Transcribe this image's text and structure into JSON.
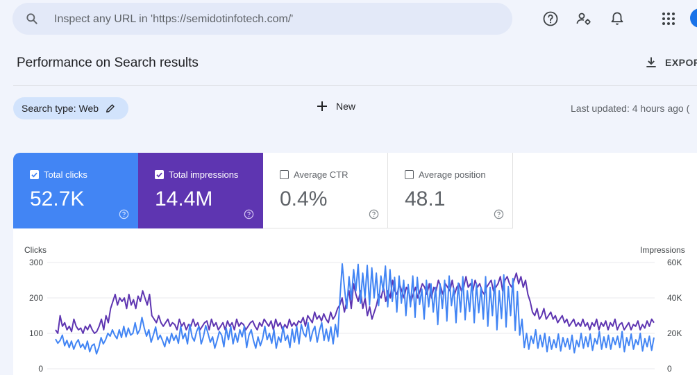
{
  "search": {
    "placeholder": "Inspect any URL in 'https://semidotinfotech.com/'"
  },
  "header": {
    "title": "Performance on Search results",
    "export_label": "EXPOR"
  },
  "filters": {
    "search_type_chip": "Search type: Web",
    "new_label": "New",
    "last_updated": "Last updated: 4 hours ago ("
  },
  "metrics": [
    {
      "label": "Total clicks",
      "value": "52.7K",
      "checked": true
    },
    {
      "label": "Total impressions",
      "value": "14.4M",
      "checked": true
    },
    {
      "label": "Average CTR",
      "value": "0.4%",
      "checked": false
    },
    {
      "label": "Average position",
      "value": "48.1",
      "checked": false
    }
  ],
  "colors": {
    "clicks": "#4285f4",
    "impressions": "#5e35b1",
    "background": "#f1f4fc"
  },
  "chart_data": {
    "type": "line",
    "left_axis_label": "Clicks",
    "right_axis_label": "Impressions",
    "left_ticks": [
      "300",
      "200",
      "100",
      "0"
    ],
    "right_ticks": [
      "60K",
      "40K",
      "20K",
      "0"
    ],
    "ylim_left": [
      0,
      300
    ],
    "ylim_right": [
      0,
      60000
    ],
    "grid": true,
    "series": [
      {
        "name": "Total clicks",
        "axis": "left",
        "values": [
          84,
          72,
          80,
          95,
          65,
          80,
          60,
          78,
          55,
          72,
          82,
          60,
          70,
          55,
          78,
          48,
          65,
          70,
          42,
          60,
          88,
          70,
          82,
          100,
          92,
          110,
          95,
          85,
          110,
          88,
          120,
          90,
          115,
          95,
          100,
          130,
          98,
          110,
          145,
          115,
          92,
          110,
          75,
          95,
          118,
          82,
          95,
          80,
          62,
          90,
          72,
          100,
          80,
          95,
          72,
          120,
          85,
          100,
          70,
          125,
          90,
          78,
          105,
          120,
          70,
          90,
          122,
          100,
          75,
          90,
          58,
          80,
          105,
          95,
          62,
          115,
          82,
          120,
          70,
          100,
          75,
          110,
          90,
          120,
          60,
          95,
          110,
          80,
          58,
          90,
          65,
          85,
          120,
          82,
          100,
          72,
          110,
          58,
          90,
          75,
          118,
          80,
          95,
          60,
          112,
          75,
          120,
          70,
          125,
          100,
          90,
          130,
          78,
          105,
          120,
          75,
          108,
          130,
          80,
          112,
          78,
          118,
          70,
          125,
          90,
          200,
          296,
          225,
          170,
          260,
          195,
          280,
          220,
          295,
          185,
          270,
          200,
          292,
          180,
          285,
          200,
          270,
          178,
          262,
          220,
          290,
          175,
          280,
          190,
          258,
          160,
          262,
          185,
          250,
          150,
          238,
          175,
          262,
          145,
          258,
          182,
          225,
          140,
          250,
          175,
          240,
          160,
          230,
          125,
          240,
          170,
          250,
          135,
          262,
          178,
          228,
          130,
          242,
          160,
          260,
          138,
          220,
          162,
          252,
          130,
          240,
          158,
          230,
          140,
          260,
          120,
          230,
          150,
          250,
          110,
          220,
          142,
          265,
          118,
          232,
          150,
          255,
          108,
          218,
          95,
          140,
          60,
          100,
          55,
          92,
          72,
          110,
          58,
          95,
          62,
          100,
          48,
          90,
          55,
          82,
          60,
          98,
          50,
          88,
          62,
          85,
          55,
          95,
          45,
          80,
          62,
          100,
          58,
          90,
          62,
          98,
          52,
          85,
          70,
          105,
          55,
          90,
          60,
          95,
          55,
          88,
          68,
          92,
          60,
          105,
          48,
          88,
          66,
          98,
          55,
          82,
          68,
          100,
          50,
          85,
          62,
          92,
          52,
          88
        ]
      },
      {
        "name": "Total impressions",
        "axis": "right",
        "values": [
          22000,
          20000,
          30000,
          24000,
          26000,
          22000,
          24000,
          21000,
          28000,
          24000,
          22000,
          23000,
          20000,
          24000,
          22000,
          25000,
          22000,
          20000,
          21000,
          24000,
          28000,
          22000,
          30000,
          26000,
          34000,
          38000,
          42000,
          36000,
          40000,
          38000,
          40000,
          34000,
          42000,
          36000,
          39000,
          34000,
          41000,
          38000,
          44000,
          40000,
          36000,
          42000,
          30000,
          28000,
          26000,
          30000,
          26000,
          24000,
          26000,
          28000,
          24000,
          26000,
          25000,
          22000,
          28000,
          24000,
          26000,
          22000,
          25000,
          24000,
          28000,
          24000,
          26000,
          22000,
          24000,
          26000,
          27000,
          22000,
          28000,
          24000,
          26000,
          22000,
          24000,
          26000,
          22000,
          27000,
          24000,
          26000,
          22000,
          28000,
          24000,
          26000,
          25000,
          22000,
          24000,
          26000,
          27000,
          24000,
          22000,
          26000,
          24000,
          28000,
          26000,
          24000,
          27000,
          22000,
          28000,
          24000,
          26000,
          22000,
          25000,
          23000,
          28000,
          24000,
          26000,
          24000,
          27000,
          26000,
          29000,
          24000,
          30000,
          28000,
          26000,
          32000,
          28000,
          30000,
          27000,
          31000,
          28000,
          26000,
          32000,
          28000,
          30000,
          34000,
          36000,
          40000,
          32000,
          38000,
          44000,
          34000,
          48000,
          42000,
          38000,
          44000,
          34000,
          40000,
          30000,
          35000,
          28000,
          32000,
          36000,
          42000,
          40000,
          46000,
          38000,
          44000,
          40000,
          50000,
          44000,
          42000,
          48000,
          44000,
          40000,
          46000,
          44000,
          38000,
          42000,
          46000,
          40000,
          44000,
          48000,
          46000,
          42000,
          48000,
          40000,
          46000,
          44000,
          50000,
          46000,
          42000,
          48000,
          46000,
          44000,
          50000,
          42000,
          46000,
          48000,
          44000,
          46000,
          52000,
          46000,
          48000,
          44000,
          50000,
          46000,
          48000,
          44000,
          42000,
          46000,
          48000,
          50000,
          44000,
          46000,
          48000,
          52000,
          44000,
          50000,
          52000,
          48000,
          46000,
          50000,
          54000,
          48000,
          52000,
          46000,
          50000,
          42000,
          38000,
          32000,
          30000,
          34000,
          28000,
          30000,
          34000,
          28000,
          30000,
          32000,
          28000,
          30000,
          26000,
          28000,
          30000,
          26000,
          28000,
          24000,
          26000,
          28000,
          24000,
          26000,
          24000,
          28000,
          24000,
          26000,
          22000,
          26000,
          24000,
          28000,
          22000,
          26000,
          24000,
          27000,
          22000,
          26000,
          24000,
          28000,
          22000,
          25000,
          26000,
          22000,
          24000,
          26000,
          22000,
          25000,
          24000,
          27000,
          22000,
          25000,
          23000,
          27000,
          24000,
          28000,
          26000
        ]
      }
    ]
  }
}
